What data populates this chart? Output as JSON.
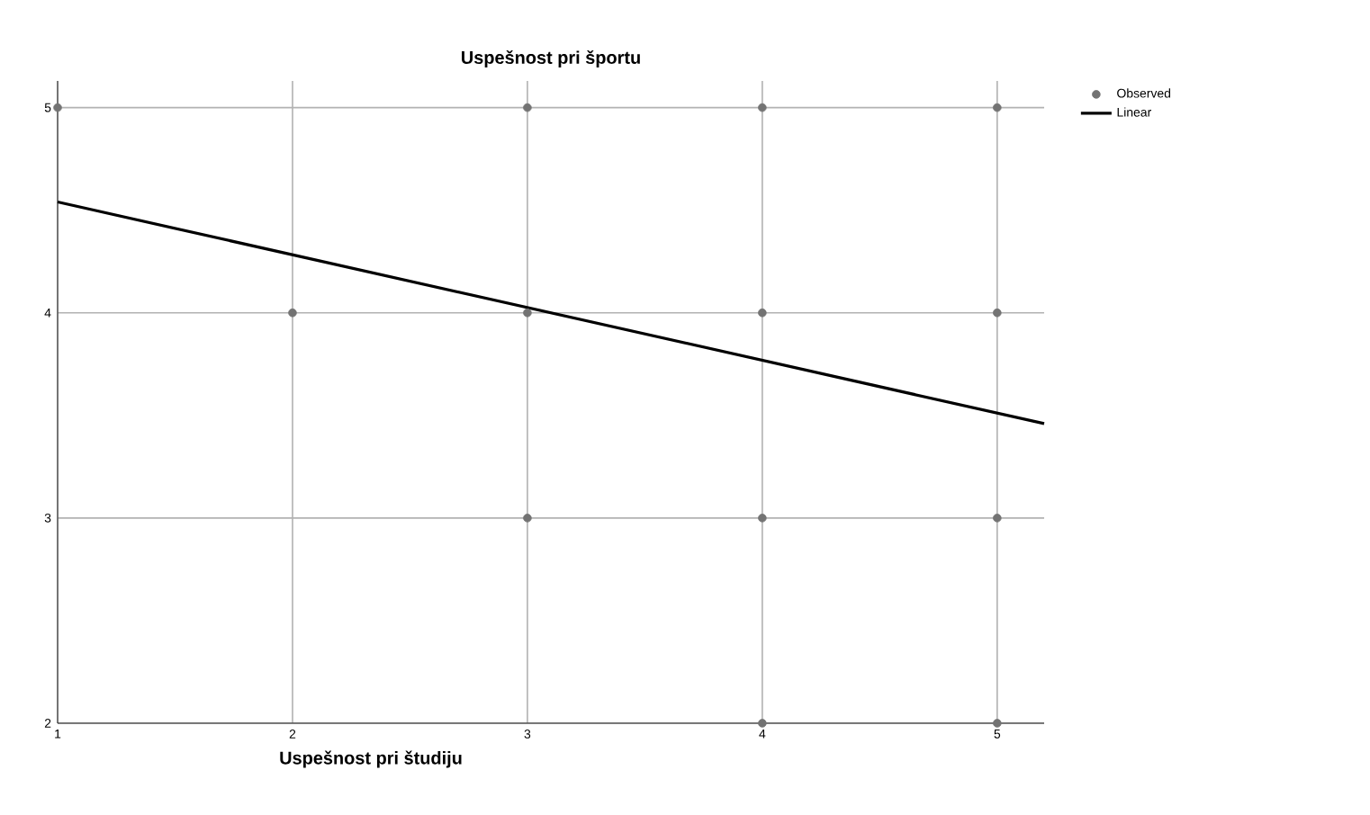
{
  "chart_data": {
    "type": "scatter",
    "title": "Uspešnost pri športu",
    "xlabel": "Uspešnost pri študiju",
    "xlim": [
      1,
      5.2
    ],
    "ylim": [
      2,
      5.13
    ],
    "xticks": [
      1,
      2,
      3,
      4,
      5
    ],
    "yticks": [
      2,
      3,
      4,
      5
    ],
    "grid": true,
    "legend": "top right",
    "series": [
      {
        "name": "Observed",
        "marker": "circle",
        "color": "#737373",
        "x": [
          1,
          2,
          3,
          3,
          3,
          4,
          4,
          4,
          4,
          5,
          5,
          5,
          5
        ],
        "values": [
          5,
          4,
          5,
          4,
          3,
          5,
          4,
          3,
          2,
          5,
          4,
          3,
          2
        ]
      },
      {
        "name": "Linear",
        "type": "line",
        "marker": "none",
        "line_style": "solid",
        "color": "#000000",
        "x": [
          1,
          5.2
        ],
        "values": [
          4.54,
          3.46
        ]
      }
    ]
  }
}
